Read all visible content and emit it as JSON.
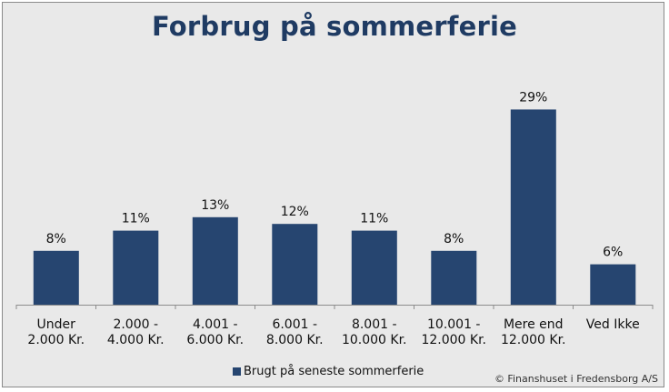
{
  "chart_data": {
    "type": "bar",
    "title": "Forbrug på sommerferie",
    "categories": [
      [
        "Under",
        "2.000 Kr."
      ],
      [
        "2.000 -",
        "4.000 Kr."
      ],
      [
        "4.001 -",
        "6.000 Kr."
      ],
      [
        "6.001 -",
        "8.000 Kr."
      ],
      [
        "8.001 -",
        "10.000 Kr."
      ],
      [
        "10.001 -",
        "12.000 Kr."
      ],
      [
        "Mere end",
        "12.000 Kr."
      ],
      [
        "Ved Ikke"
      ]
    ],
    "series": [
      {
        "name": "Brugt på seneste sommerferie",
        "values": [
          8,
          11,
          13,
          12,
          11,
          8,
          29,
          6
        ],
        "labels": [
          "8%",
          "11%",
          "13%",
          "12%",
          "11%",
          "8%",
          "29%",
          "6%"
        ],
        "color": "#264570"
      }
    ],
    "ylim": [
      0,
      30
    ],
    "grid": false,
    "legend": "bottom"
  },
  "credit": "© Finanshuset i Fredensborg A/S",
  "colors": {
    "background": "#e9e9e9",
    "title": "#1f3b63",
    "bar": "#264570"
  }
}
